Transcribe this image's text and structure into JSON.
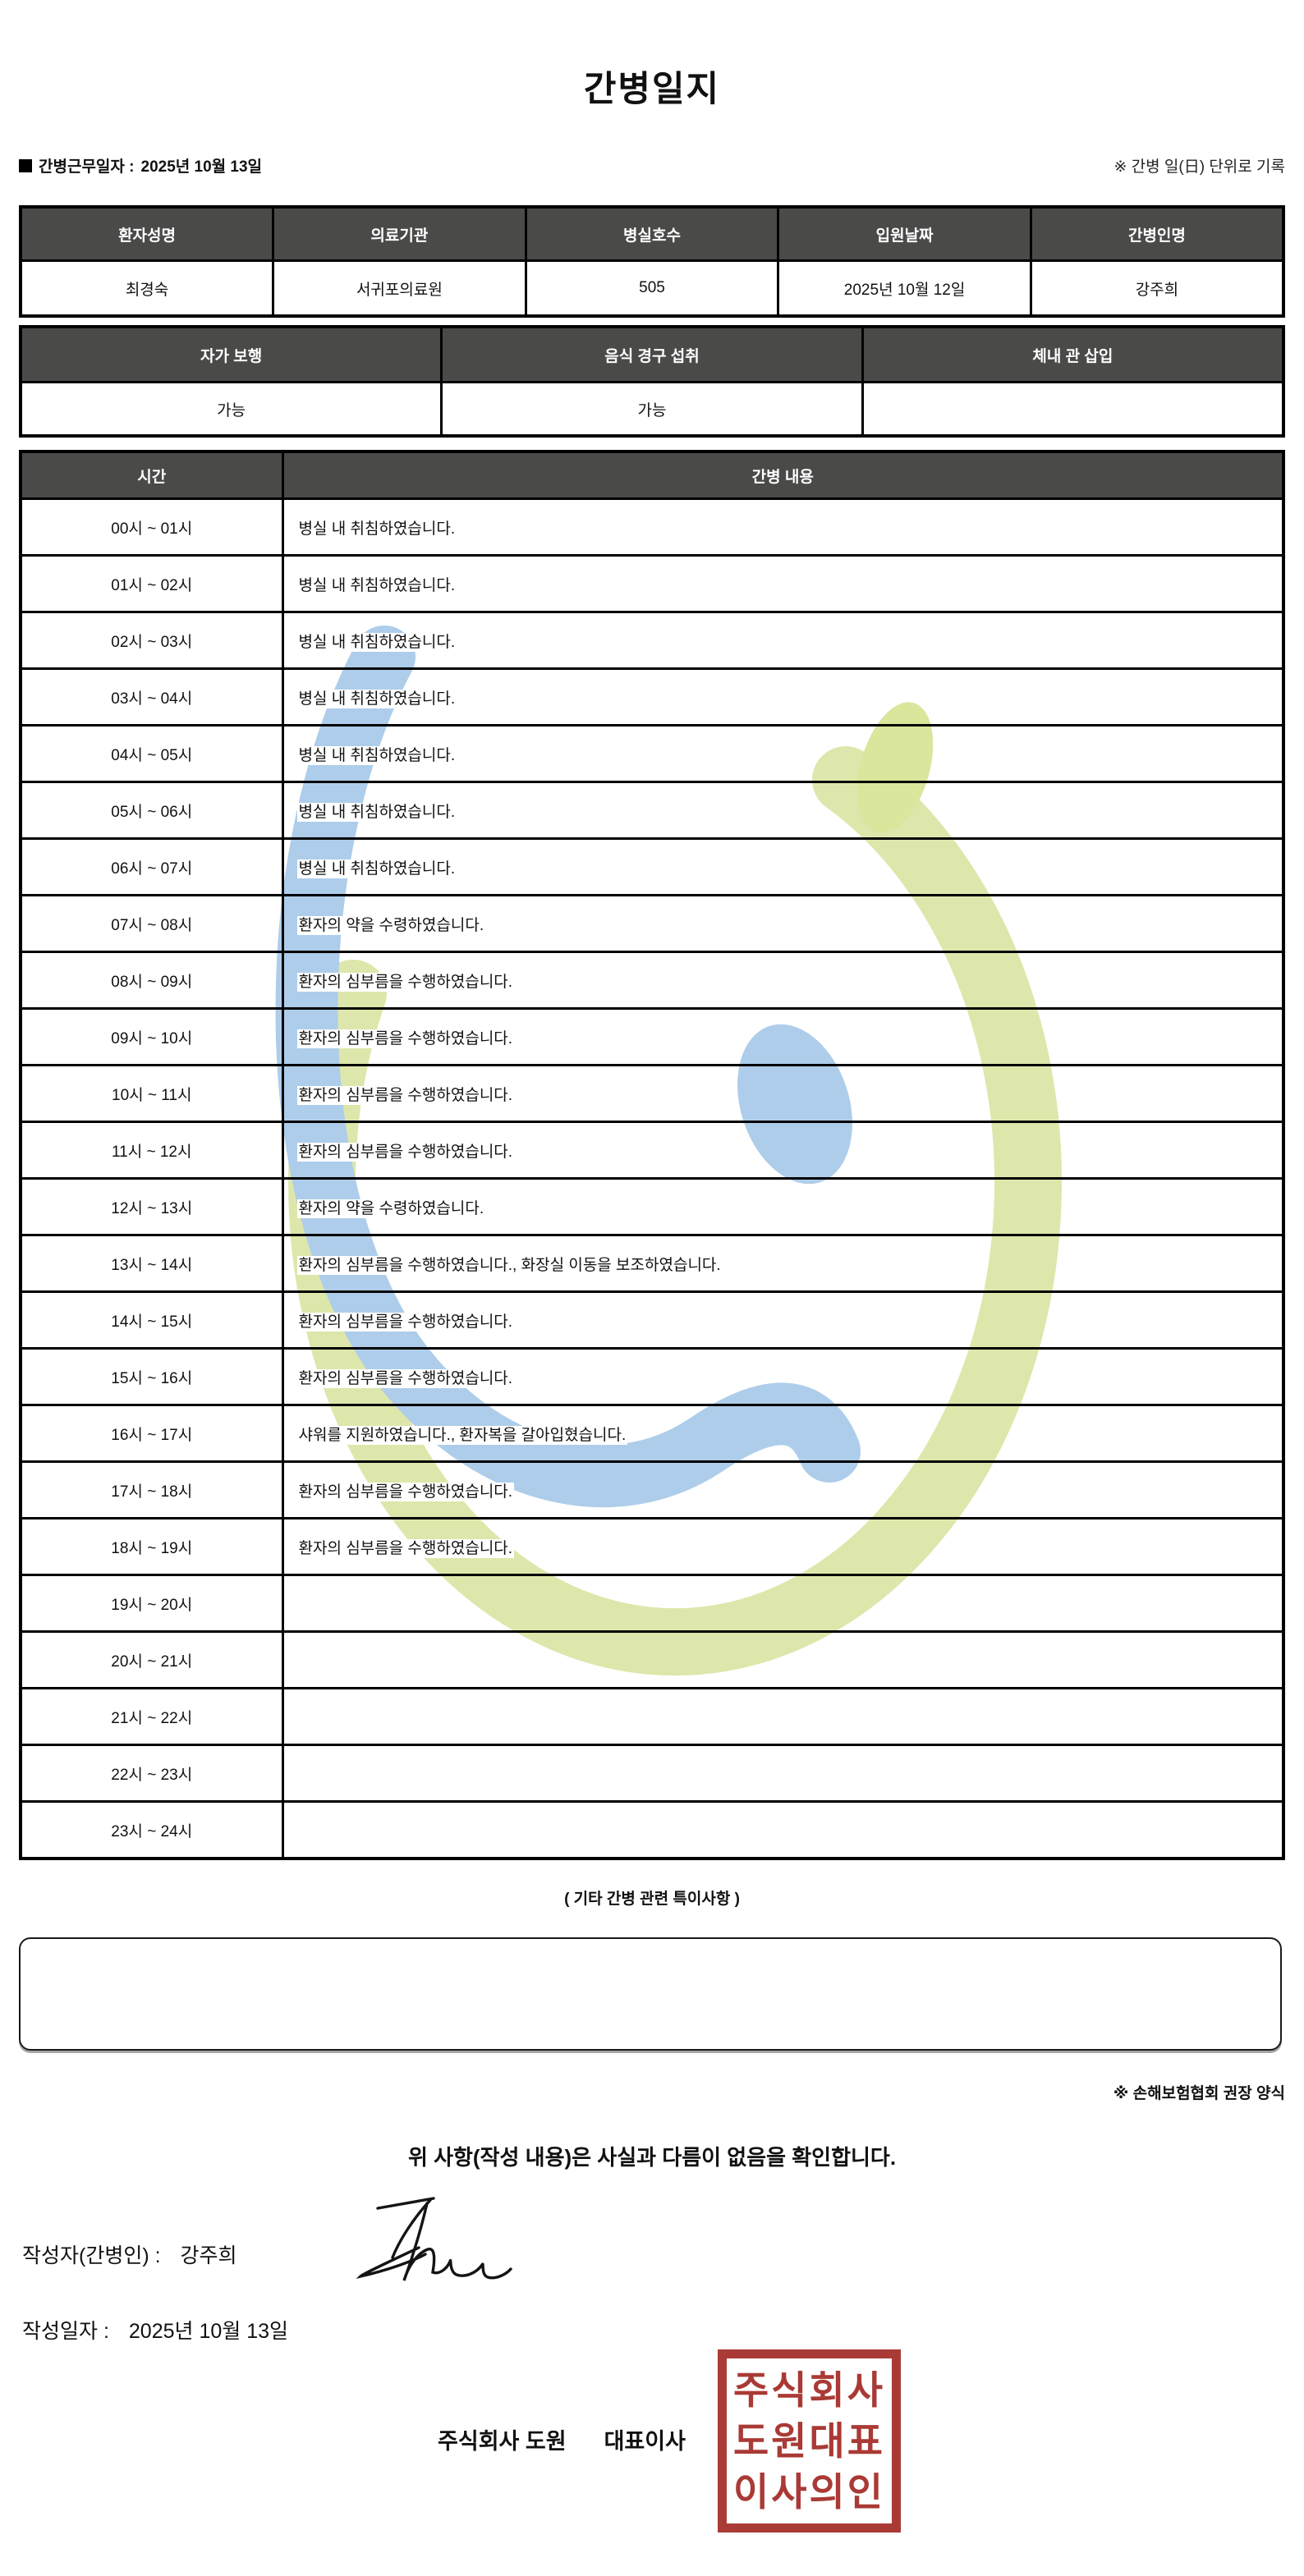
{
  "header": {
    "title": "간병일지",
    "duty_date_label": "간병근무일자 :",
    "duty_date_value": "2025년 10월 13일",
    "unit_note": "※ 간병 일(日) 단위로 기록"
  },
  "patient_table": {
    "headers": [
      "환자성명",
      "의료기관",
      "병실호수",
      "입원날짜",
      "간병인명"
    ],
    "values": [
      "최경숙",
      "서귀포의료원",
      "505",
      "2025년 10월 12일",
      "강주희"
    ]
  },
  "status_table": {
    "headers": [
      "자가 보행",
      "음식 경구 섭취",
      "체내 관 삽입"
    ],
    "values": [
      "가능",
      "가능",
      ""
    ]
  },
  "care_log": {
    "time_header": "시간",
    "content_header": "간병 내용",
    "rows": [
      {
        "time": "00시 ~ 01시",
        "content": "병실 내 취침하였습니다."
      },
      {
        "time": "01시 ~ 02시",
        "content": "병실 내 취침하였습니다."
      },
      {
        "time": "02시 ~ 03시",
        "content": "병실 내 취침하였습니다."
      },
      {
        "time": "03시 ~ 04시",
        "content": "병실 내 취침하였습니다."
      },
      {
        "time": "04시 ~ 05시",
        "content": "병실 내 취침하였습니다."
      },
      {
        "time": "05시 ~ 06시",
        "content": "병실 내 취침하였습니다."
      },
      {
        "time": "06시 ~ 07시",
        "content": "병실 내 취침하였습니다."
      },
      {
        "time": "07시 ~ 08시",
        "content": "환자의 약을 수령하였습니다."
      },
      {
        "time": "08시 ~ 09시",
        "content": "환자의 심부름을 수행하였습니다."
      },
      {
        "time": "09시 ~ 10시",
        "content": "환자의 심부름을 수행하였습니다."
      },
      {
        "time": "10시 ~ 11시",
        "content": "환자의 심부름을 수행하였습니다."
      },
      {
        "time": "11시 ~ 12시",
        "content": "환자의 심부름을 수행하였습니다."
      },
      {
        "time": "12시 ~ 13시",
        "content": "환자의 약을 수령하였습니다."
      },
      {
        "time": "13시 ~ 14시",
        "content": "환자의 심부름을 수행하였습니다., 화장실 이동을 보조하였습니다."
      },
      {
        "time": "14시 ~ 15시",
        "content": "환자의 심부름을 수행하였습니다."
      },
      {
        "time": "15시 ~ 16시",
        "content": "환자의 심부름을 수행하였습니다."
      },
      {
        "time": "16시 ~ 17시",
        "content": "샤워를 지원하였습니다., 환자복을 갈아입혔습니다."
      },
      {
        "time": "17시 ~ 18시",
        "content": "환자의 심부름을 수행하였습니다."
      },
      {
        "time": "18시 ~ 19시",
        "content": "환자의 심부름을 수행하였습니다."
      },
      {
        "time": "19시 ~ 20시",
        "content": ""
      },
      {
        "time": "20시 ~ 21시",
        "content": ""
      },
      {
        "time": "21시 ~ 22시",
        "content": ""
      },
      {
        "time": "22시 ~ 23시",
        "content": ""
      },
      {
        "time": "23시 ~ 24시",
        "content": ""
      }
    ]
  },
  "notes": {
    "title": "( 기타 간병 관련 특이사항 )",
    "content": "",
    "form_note": "※ 손해보험협회 권장 양식"
  },
  "footer": {
    "confirmation": "위 사항(작성 내용)은 사실과 다름이 없음을 확인합니다.",
    "writer_label": "작성자(간병인) :",
    "writer_name": "강주희",
    "written_date_label": "작성일자 :",
    "written_date_value": "2025년 10월 13일",
    "company_name": "주식회사 도원",
    "ceo_title": "대표이사",
    "stamp_lines": [
      "주식회사",
      "도원대표",
      "이사의인"
    ]
  },
  "colors": {
    "table_header_bg": "#4a4a49",
    "stamp_red": "#a5302b",
    "watermark_blue": "#aecdea",
    "watermark_green": "#dde7ab"
  }
}
